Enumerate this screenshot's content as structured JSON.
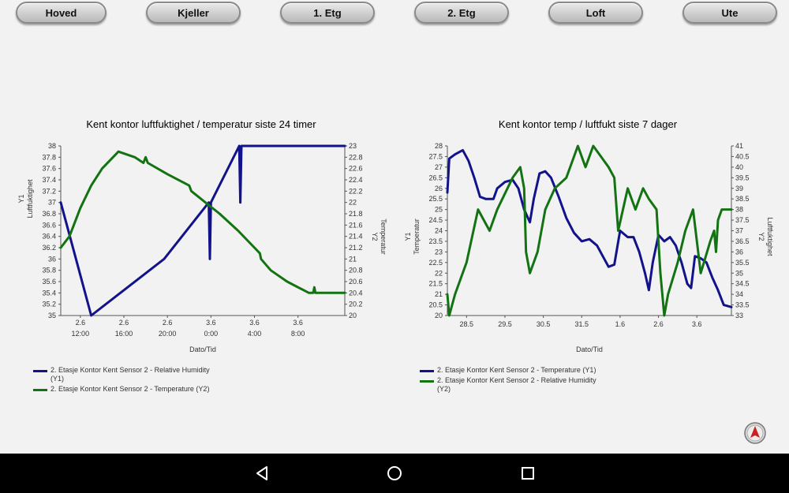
{
  "nav": {
    "tabs": [
      {
        "label": "Hoved"
      },
      {
        "label": "Kjeller"
      },
      {
        "label": "1. Etg"
      },
      {
        "label": "2. Etg"
      },
      {
        "label": "Loft"
      },
      {
        "label": "Ute"
      }
    ]
  },
  "charts": [
    {
      "title": "Kent kontor luftfuktighet / temperatur siste 24 timer",
      "xlabel": "Dato/Tid",
      "y1label_top": "Y1",
      "y1label": "Luftfuktighet",
      "y2label_top": "Y2",
      "y2label": "Temperatur",
      "legend": [
        {
          "text": "2. Etasje Kontor Kent Sensor 2 - Relative Humidity (Y1)",
          "color": "#12128a"
        },
        {
          "text": "2. Etasje Kontor Kent Sensor 2 - Temperature (Y2)",
          "color": "#137313"
        }
      ]
    },
    {
      "title": "Kent kontor temp / luftfukt siste 7 dager",
      "xlabel": "Dato/Tid",
      "y1label_top": "Y1",
      "y1label": "Temperatur",
      "y2label_top": "Y2",
      "y2label": "Luftfuktighet",
      "legend": [
        {
          "text": "2. Etasje Kontor Kent Sensor 2 - Temperature (Y1)",
          "color": "#12128a"
        },
        {
          "text": "2. Etasje Kontor Kent Sensor 2 - Relative Humidity (Y2)",
          "color": "#137313"
        }
      ]
    }
  ],
  "chart_data": [
    {
      "type": "line",
      "title": "Kent kontor luftfuktighet / temperatur siste 24 timer",
      "xlabel": "Dato/Tid",
      "ylabel": "Luftfuktighet",
      "y2label": "Temperatur",
      "x_ticks": [
        {
          "date": "2.6",
          "time": "12:00"
        },
        {
          "date": "2.6",
          "time": "16:00"
        },
        {
          "date": "2.6",
          "time": "20:00"
        },
        {
          "date": "3.6",
          "time": "0:00"
        },
        {
          "date": "3.6",
          "time": "4:00"
        },
        {
          "date": "3.6",
          "time": "8:00"
        }
      ],
      "x_tick_hours": [
        12,
        16,
        20,
        24,
        28,
        32
      ],
      "xlim": [
        10.2,
        36.3
      ],
      "ylim": [
        35,
        38
      ],
      "y_ticks": [
        "38",
        "37.8",
        "37.6",
        "37.4",
        "37.2",
        "37",
        "36.8",
        "36.6",
        "36.4",
        "36.2",
        "36",
        "35.8",
        "35.6",
        "35.4",
        "35.2",
        "35"
      ],
      "y2lim": [
        20,
        23
      ],
      "y2_ticks": [
        "23",
        "22.8",
        "22.6",
        "22.4",
        "22.2",
        "22",
        "21.8",
        "21.6",
        "21.4",
        "21.2",
        "21",
        "20.8",
        "20.6",
        "20.4",
        "20.2",
        "20"
      ],
      "series": [
        {
          "name": "2. Etasje Kontor Kent Sensor 2 - Relative Humidity (Y1)",
          "axis": "y1",
          "color": "#12128a",
          "points": [
            [
              10.2,
              37.0
            ],
            [
              11.6,
              36.0
            ],
            [
              13.0,
              35.0
            ],
            [
              19.7,
              36.0
            ],
            [
              23.8,
              37.0
            ],
            [
              23.9,
              36.0
            ],
            [
              24.0,
              37.0
            ],
            [
              26.6,
              38.0
            ],
            [
              26.7,
              37.0
            ],
            [
              26.8,
              38.0
            ],
            [
              36.3,
              38.0
            ]
          ]
        },
        {
          "name": "2. Etasje Kontor Kent Sensor 2 - Temperature (Y2)",
          "axis": "y2",
          "color": "#137313",
          "points": [
            [
              10.2,
              21.2
            ],
            [
              11.0,
              21.4
            ],
            [
              12.0,
              21.9
            ],
            [
              13.0,
              22.3
            ],
            [
              14.0,
              22.6
            ],
            [
              15.5,
              22.9
            ],
            [
              17.0,
              22.8
            ],
            [
              17.8,
              22.7
            ],
            [
              18.0,
              22.8
            ],
            [
              18.2,
              22.7
            ],
            [
              20.0,
              22.5
            ],
            [
              22.0,
              22.3
            ],
            [
              22.2,
              22.2
            ],
            [
              23.5,
              22.0
            ],
            [
              24.8,
              21.8
            ],
            [
              26.5,
              21.5
            ],
            [
              28.0,
              21.2
            ],
            [
              28.5,
              21.1
            ],
            [
              28.6,
              21.0
            ],
            [
              29.5,
              20.8
            ],
            [
              31.0,
              20.6
            ],
            [
              33.0,
              20.4
            ],
            [
              33.4,
              20.4
            ],
            [
              33.5,
              20.5
            ],
            [
              33.6,
              20.4
            ],
            [
              36.3,
              20.4
            ]
          ]
        }
      ],
      "grid": false,
      "legend_position": "bottom-left"
    },
    {
      "type": "line",
      "title": "Kent kontor temp / luftfukt siste 7 dager",
      "xlabel": "Dato/Tid",
      "ylabel": "Temperatur",
      "y2label": "Luftfuktighet",
      "x_ticks": [
        "28.5",
        "29.5",
        "30.5",
        "31.5",
        "1.6",
        "2.6",
        "3.6"
      ],
      "x_tick_days": [
        1.5,
        2.5,
        3.5,
        4.5,
        5.5,
        6.5,
        7.5
      ],
      "xlim": [
        1.0,
        8.4
      ],
      "ylim": [
        20,
        28
      ],
      "y_ticks": [
        "28",
        "27.5",
        "27",
        "26.5",
        "26",
        "25.5",
        "25",
        "24.5",
        "24",
        "23.5",
        "23",
        "22.5",
        "22",
        "21.5",
        "21",
        "20.5",
        "20"
      ],
      "y2lim": [
        33,
        41
      ],
      "y2_ticks": [
        "41",
        "40.5",
        "40",
        "39.5",
        "39",
        "38.5",
        "38",
        "37.5",
        "37",
        "36.5",
        "36",
        "35.5",
        "35",
        "34.5",
        "34",
        "33.5",
        "33"
      ],
      "series": [
        {
          "name": "2. Etasje Kontor Kent Sensor 2 - Temperature (Y1)",
          "axis": "y1",
          "color": "#12128a",
          "points": [
            [
              1.0,
              25.8
            ],
            [
              1.05,
              27.4
            ],
            [
              1.2,
              27.6
            ],
            [
              1.4,
              27.8
            ],
            [
              1.55,
              27.3
            ],
            [
              1.7,
              26.5
            ],
            [
              1.85,
              25.6
            ],
            [
              2.0,
              25.5
            ],
            [
              2.2,
              25.5
            ],
            [
              2.3,
              26.0
            ],
            [
              2.5,
              26.3
            ],
            [
              2.7,
              26.4
            ],
            [
              2.85,
              26.0
            ],
            [
              3.0,
              25.0
            ],
            [
              3.15,
              24.4
            ],
            [
              3.25,
              25.5
            ],
            [
              3.4,
              26.7
            ],
            [
              3.55,
              26.8
            ],
            [
              3.7,
              26.5
            ],
            [
              3.9,
              25.6
            ],
            [
              4.1,
              24.6
            ],
            [
              4.3,
              23.9
            ],
            [
              4.5,
              23.5
            ],
            [
              4.7,
              23.6
            ],
            [
              4.9,
              23.3
            ],
            [
              5.05,
              22.8
            ],
            [
              5.2,
              22.3
            ],
            [
              5.35,
              22.4
            ],
            [
              5.5,
              24.0
            ],
            [
              5.7,
              23.7
            ],
            [
              5.85,
              23.7
            ],
            [
              6.0,
              23.0
            ],
            [
              6.15,
              22.0
            ],
            [
              6.25,
              21.2
            ],
            [
              6.35,
              22.5
            ],
            [
              6.5,
              23.8
            ],
            [
              6.65,
              23.5
            ],
            [
              6.8,
              23.7
            ],
            [
              6.95,
              23.3
            ],
            [
              7.1,
              22.5
            ],
            [
              7.25,
              21.5
            ],
            [
              7.35,
              21.3
            ],
            [
              7.45,
              22.8
            ],
            [
              7.6,
              22.7
            ],
            [
              7.75,
              22.5
            ],
            [
              7.9,
              21.8
            ],
            [
              8.05,
              21.2
            ],
            [
              8.2,
              20.5
            ],
            [
              8.4,
              20.4
            ]
          ]
        },
        {
          "name": "2. Etasje Kontor Kent Sensor 2 - Relative Humidity (Y2)",
          "axis": "y2",
          "color": "#137313",
          "points": [
            [
              1.0,
              34.0
            ],
            [
              1.05,
              33.0
            ],
            [
              1.2,
              34.0
            ],
            [
              1.5,
              35.5
            ],
            [
              1.8,
              38.0
            ],
            [
              2.1,
              37.0
            ],
            [
              2.3,
              38.0
            ],
            [
              2.7,
              39.5
            ],
            [
              2.9,
              40.0
            ],
            [
              3.0,
              39.0
            ],
            [
              3.05,
              36.0
            ],
            [
              3.15,
              35.0
            ],
            [
              3.35,
              36.0
            ],
            [
              3.55,
              38.0
            ],
            [
              3.8,
              39.0
            ],
            [
              4.1,
              39.5
            ],
            [
              4.4,
              41.0
            ],
            [
              4.6,
              40.0
            ],
            [
              4.8,
              41.0
            ],
            [
              5.0,
              40.5
            ],
            [
              5.2,
              40.0
            ],
            [
              5.35,
              39.5
            ],
            [
              5.45,
              37.0
            ],
            [
              5.7,
              39.0
            ],
            [
              5.9,
              38.0
            ],
            [
              6.1,
              39.0
            ],
            [
              6.25,
              38.5
            ],
            [
              6.45,
              38.0
            ],
            [
              6.55,
              35.0
            ],
            [
              6.65,
              33.0
            ],
            [
              6.75,
              34.0
            ],
            [
              7.0,
              35.5
            ],
            [
              7.2,
              37.0
            ],
            [
              7.4,
              38.0
            ],
            [
              7.6,
              35.0
            ],
            [
              7.85,
              36.5
            ],
            [
              7.95,
              37.0
            ],
            [
              8.0,
              36.0
            ],
            [
              8.05,
              37.5
            ],
            [
              8.15,
              38.0
            ],
            [
              8.4,
              38.0
            ]
          ]
        }
      ],
      "grid": false,
      "legend_position": "bottom-left"
    }
  ],
  "colors": {
    "background": "#f2f2f2",
    "series_blue": "#12128a",
    "series_green": "#137313",
    "compass_red": "#cc1f1f",
    "system_bar": "#000000"
  },
  "icons": {
    "compass": "compass-icon",
    "back": "back-triangle-icon",
    "home": "home-circle-icon",
    "recents": "recents-square-icon"
  }
}
